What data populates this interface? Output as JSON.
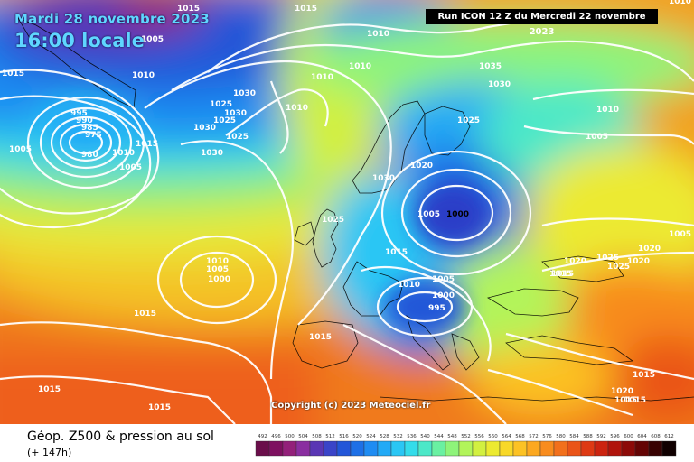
{
  "header": {
    "date": "Mardi 28 novembre 2023",
    "time": "16:00 locale",
    "run": "Run ICON 12 Z du Mercredi 22 novembre 2023"
  },
  "copyright": "Copyright (c) 2023 Meteociel.fr",
  "footer": {
    "title": "Géop. Z500 & pression au sol",
    "subtitle": "(+ 147h)"
  },
  "pressure_labels": [
    "1015",
    "1005",
    "1010",
    "1005",
    "1015",
    "1010",
    "995",
    "990",
    "985",
    "980",
    "975",
    "1005",
    "1015",
    "1010",
    "1030",
    "1025",
    "1030",
    "1025",
    "1030",
    "1025",
    "1030",
    "1010",
    "1010",
    "1010",
    "1015",
    "1035",
    "1030",
    "1025",
    "1020",
    "1010",
    "1005",
    "1025",
    "1030",
    "1005",
    "1000",
    "1015",
    "1010",
    "1005",
    "1000",
    "995",
    "1010",
    "1005",
    "1000",
    "1015",
    "1015",
    "1015",
    "1015",
    "1015",
    "1010",
    "1005",
    "1015",
    "1020",
    "1025",
    "1025",
    "1020",
    "1020",
    "1020",
    "1015",
    "1015",
    "1015"
  ],
  "colorbar": {
    "ticks": [
      "492",
      "496",
      "500",
      "504",
      "508",
      "512",
      "516",
      "520",
      "524",
      "528",
      "532",
      "536",
      "540",
      "544",
      "548",
      "552",
      "556",
      "560",
      "564",
      "568",
      "572",
      "576",
      "580",
      "584",
      "588",
      "592",
      "596",
      "600",
      "604",
      "608",
      "612"
    ],
    "colors": [
      "#6a0e4a",
      "#7e1060",
      "#93207a",
      "#8a2ea0",
      "#5a36b4",
      "#3a44c8",
      "#2356d8",
      "#1e70e6",
      "#1f8cf2",
      "#22aaf6",
      "#2ac6f4",
      "#33dcea",
      "#4ce8c8",
      "#6af0a2",
      "#8ef47a",
      "#b2f45a",
      "#d2f040",
      "#ecea30",
      "#f8d828",
      "#fcc224",
      "#fca820",
      "#f88c1e",
      "#f2701c",
      "#ea5418",
      "#de3a14",
      "#cc2410",
      "#b0140c",
      "#8c0a08",
      "#640404",
      "#380202",
      "#100000"
    ]
  }
}
